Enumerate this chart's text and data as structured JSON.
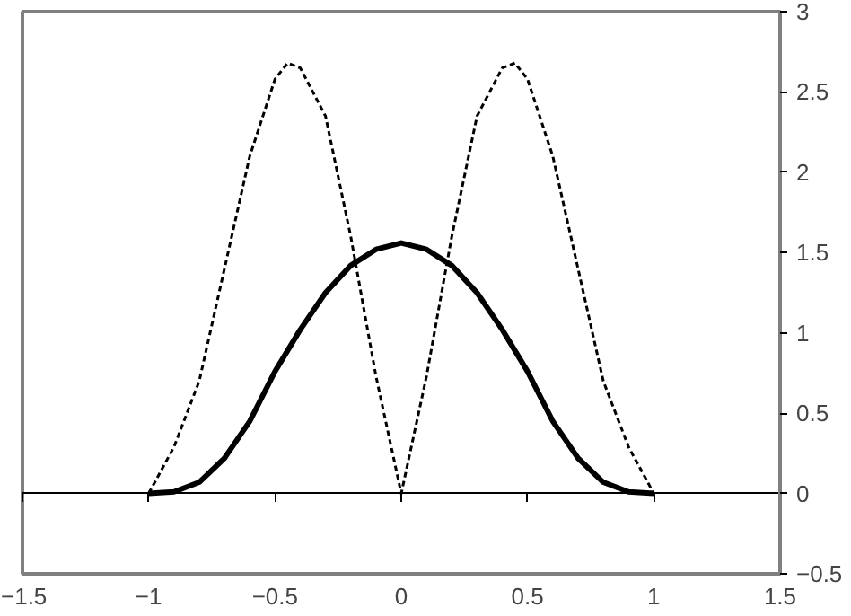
{
  "chart_data": {
    "type": "line",
    "xlim": [
      -1.5,
      1.5
    ],
    "ylim": [
      -0.5,
      3
    ],
    "xticks": [
      -1.5,
      -1,
      -0.5,
      0,
      0.5,
      1,
      1.5
    ],
    "yticks": [
      -0.5,
      0,
      0.5,
      1,
      1.5,
      2,
      2.5,
      3
    ],
    "marker": "none",
    "series": [
      {
        "color": "#000000",
        "line_style": "solid",
        "x": [
          -1,
          -0.9,
          -0.8,
          -0.7,
          -0.6,
          -0.5,
          -0.4,
          -0.3,
          -0.2,
          -0.1,
          0,
          0.1,
          0.2,
          0.3,
          0.4,
          0.5,
          0.6,
          0.7,
          0.8,
          0.9,
          1
        ],
        "values": [
          0,
          0.01,
          0.07,
          0.22,
          0.45,
          0.76,
          1.02,
          1.25,
          1.42,
          1.52,
          1.56,
          1.52,
          1.42,
          1.25,
          1.02,
          0.76,
          0.45,
          0.22,
          0.07,
          0.01,
          0
        ]
      },
      {
        "color": "#000000",
        "line_style": "dashed",
        "x": [
          -1,
          -0.9,
          -0.8,
          -0.7,
          -0.6,
          -0.5,
          -0.45,
          -0.4,
          -0.3,
          -0.2,
          -0.1,
          0,
          0.1,
          0.2,
          0.3,
          0.4,
          0.45,
          0.5,
          0.6,
          0.7,
          0.8,
          0.9,
          1
        ],
        "values": [
          0,
          0.29,
          0.7,
          1.4,
          2.1,
          2.58,
          2.68,
          2.65,
          2.35,
          1.6,
          0.73,
          0,
          0.73,
          1.6,
          2.35,
          2.65,
          2.68,
          2.58,
          2.1,
          1.4,
          0.7,
          0.29,
          0
        ]
      }
    ]
  }
}
